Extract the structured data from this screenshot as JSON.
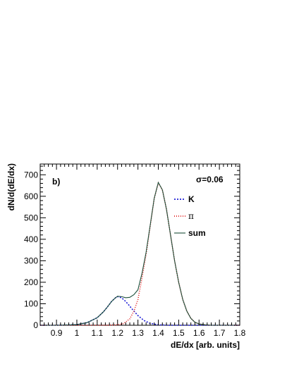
{
  "chart_data": {
    "type": "line",
    "panel_label": "b)",
    "annotation": "σ=0.06",
    "xlabel": "dE/dx [arb. units]",
    "ylabel": "dN/d(dE/dx)",
    "xlim": [
      0.82,
      1.8
    ],
    "ylim": [
      0,
      750
    ],
    "x_ticks": [
      "0.9",
      "1",
      "1.1",
      "1.2",
      "1.3",
      "1.4",
      "1.5",
      "1.6",
      "1.7",
      "1.8"
    ],
    "y_ticks": [
      "0",
      "100",
      "200",
      "300",
      "400",
      "500",
      "600",
      "700"
    ],
    "legend": {
      "position": "top-right",
      "entries": [
        {
          "label": "K",
          "series": "K"
        },
        {
          "label": "π",
          "series": "pi"
        },
        {
          "label": "sum",
          "series": "sum"
        }
      ]
    },
    "series": [
      {
        "name": "K",
        "color": "#1f1fd6",
        "dash": "2,2",
        "points": [
          [
            0.82,
            0
          ],
          [
            0.9,
            0
          ],
          [
            0.95,
            1
          ],
          [
            1.0,
            3
          ],
          [
            1.05,
            12
          ],
          [
            1.1,
            35
          ],
          [
            1.13,
            62
          ],
          [
            1.15,
            85
          ],
          [
            1.17,
            110
          ],
          [
            1.19,
            128
          ],
          [
            1.2,
            133
          ],
          [
            1.21,
            132
          ],
          [
            1.23,
            120
          ],
          [
            1.25,
            100
          ],
          [
            1.27,
            77
          ],
          [
            1.3,
            45
          ],
          [
            1.33,
            22
          ],
          [
            1.36,
            9
          ],
          [
            1.4,
            2
          ],
          [
            1.45,
            0
          ],
          [
            1.8,
            0
          ]
        ]
      },
      {
        "name": "pi",
        "color": "#e01b1b",
        "dash": "1,2",
        "points": [
          [
            0.82,
            0
          ],
          [
            1.15,
            0
          ],
          [
            1.2,
            2
          ],
          [
            1.23,
            8
          ],
          [
            1.26,
            30
          ],
          [
            1.28,
            65
          ],
          [
            1.3,
            120
          ],
          [
            1.32,
            220
          ],
          [
            1.34,
            330
          ],
          [
            1.36,
            460
          ],
          [
            1.38,
            590
          ],
          [
            1.4,
            662
          ],
          [
            1.42,
            630
          ],
          [
            1.44,
            540
          ],
          [
            1.46,
            420
          ],
          [
            1.48,
            300
          ],
          [
            1.5,
            200
          ],
          [
            1.52,
            120
          ],
          [
            1.54,
            66
          ],
          [
            1.56,
            32
          ],
          [
            1.58,
            14
          ],
          [
            1.6,
            6
          ],
          [
            1.63,
            2
          ],
          [
            1.66,
            0
          ],
          [
            1.8,
            0
          ]
        ]
      },
      {
        "name": "sum",
        "color": "#1c4f3a",
        "dash": "",
        "points": [
          [
            0.82,
            0
          ],
          [
            0.9,
            0
          ],
          [
            0.95,
            1
          ],
          [
            1.0,
            3
          ],
          [
            1.05,
            12
          ],
          [
            1.1,
            35
          ],
          [
            1.13,
            62
          ],
          [
            1.15,
            85
          ],
          [
            1.17,
            110
          ],
          [
            1.19,
            128
          ],
          [
            1.2,
            135
          ],
          [
            1.22,
            133
          ],
          [
            1.24,
            128
          ],
          [
            1.26,
            130
          ],
          [
            1.28,
            142
          ],
          [
            1.3,
            165
          ],
          [
            1.32,
            242
          ],
          [
            1.34,
            339
          ],
          [
            1.36,
            464
          ],
          [
            1.38,
            591
          ],
          [
            1.4,
            664
          ],
          [
            1.42,
            630
          ],
          [
            1.44,
            540
          ],
          [
            1.46,
            420
          ],
          [
            1.48,
            300
          ],
          [
            1.5,
            200
          ],
          [
            1.52,
            120
          ],
          [
            1.54,
            66
          ],
          [
            1.56,
            32
          ],
          [
            1.58,
            14
          ],
          [
            1.6,
            6
          ],
          [
            1.63,
            2
          ],
          [
            1.66,
            0
          ],
          [
            1.8,
            0
          ]
        ]
      }
    ]
  }
}
